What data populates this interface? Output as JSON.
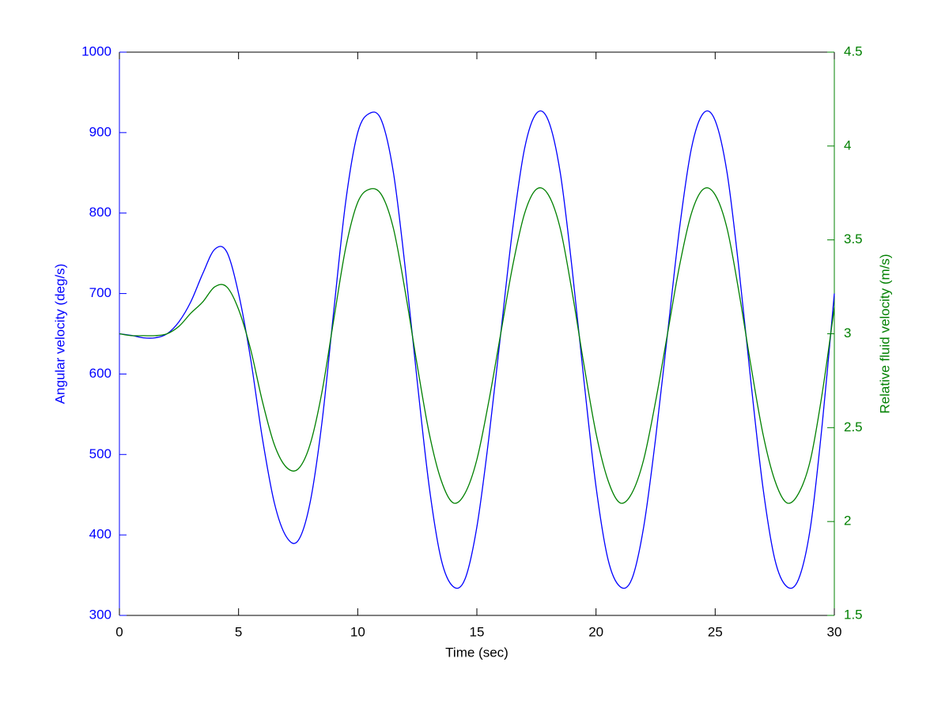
{
  "chart_data": {
    "type": "line",
    "xlabel": "Time (sec)",
    "ylabel": "Angular velocity (deg/s)",
    "y2label": "Relative fluid velocity (m/s)",
    "x": [
      0,
      0.5,
      1,
      1.5,
      2,
      2.5,
      3,
      3.5,
      4,
      4.5,
      5,
      5.5,
      6,
      6.5,
      7,
      7.5,
      8,
      8.5,
      9,
      9.5,
      10,
      10.5,
      11,
      11.5,
      12,
      12.5,
      13,
      13.5,
      14,
      14.5,
      15,
      15.5,
      16,
      16.5,
      17,
      17.5,
      18,
      18.5,
      19,
      19.5,
      20,
      20.5,
      21,
      21.5,
      22,
      22.5,
      23,
      23.5,
      24,
      24.5,
      25,
      25.5,
      26,
      26.5,
      27,
      27.5,
      28,
      28.5,
      29,
      29.5,
      30
    ],
    "series": [
      {
        "color": "#0000ff",
        "axis": "y",
        "values": [
          650,
          648,
          645,
          645,
          650,
          665,
          690,
          725,
          755,
          752,
          700,
          620,
          520,
          440,
          398,
          393,
          440,
          540,
          680,
          815,
          900,
          924,
          915,
          850,
          730,
          590,
          460,
          370,
          336,
          345,
          410,
          520,
          650,
          780,
          880,
          924,
          915,
          850,
          730,
          590,
          460,
          370,
          336,
          345,
          410,
          520,
          650,
          780,
          880,
          924,
          915,
          850,
          730,
          590,
          460,
          370,
          336,
          345,
          410,
          540,
          700
        ]
      },
      {
        "color": "#008000",
        "axis": "y2",
        "values": [
          3.0,
          2.99,
          2.99,
          2.99,
          3.0,
          3.04,
          3.11,
          3.17,
          3.25,
          3.25,
          3.13,
          2.92,
          2.64,
          2.41,
          2.29,
          2.28,
          2.41,
          2.69,
          3.08,
          3.46,
          3.7,
          3.77,
          3.74,
          3.56,
          3.22,
          2.83,
          2.47,
          2.22,
          2.1,
          2.15,
          2.33,
          2.64,
          3.0,
          3.36,
          3.64,
          3.77,
          3.74,
          3.56,
          3.22,
          2.83,
          2.47,
          2.22,
          2.1,
          2.15,
          2.33,
          2.64,
          3.0,
          3.36,
          3.64,
          3.77,
          3.74,
          3.56,
          3.22,
          2.83,
          2.47,
          2.22,
          2.1,
          2.15,
          2.33,
          2.69,
          3.14
        ]
      }
    ],
    "xlim": [
      0,
      30
    ],
    "xticks": [
      0,
      5,
      10,
      15,
      20,
      25,
      30
    ],
    "ylim": [
      300,
      1000
    ],
    "yticks": [
      300,
      400,
      500,
      600,
      700,
      800,
      900,
      1000
    ],
    "y2lim": [
      1.5,
      4.5
    ],
    "y2ticks": [
      1.5,
      2,
      2.5,
      3,
      3.5,
      4,
      4.5
    ],
    "grid": false
  }
}
